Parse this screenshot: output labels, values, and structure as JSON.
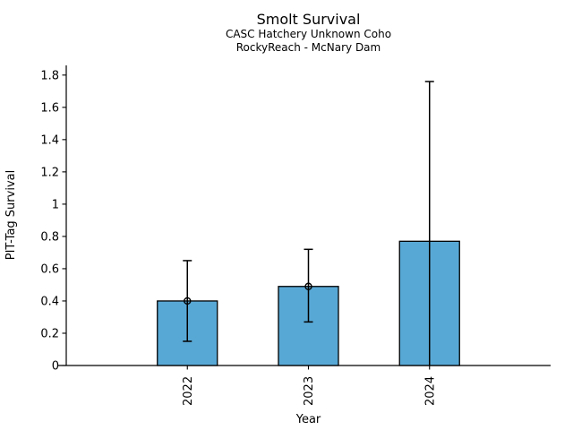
{
  "chart_data": {
    "type": "bar",
    "title": "Smolt Survival",
    "subtitle_lines": [
      "CASC Hatchery Unknown Coho",
      "RockyReach - McNary Dam"
    ],
    "xlabel": "Year",
    "ylabel": "PIT-Tag Survival",
    "categories": [
      "2022",
      "2023",
      "2024"
    ],
    "series": [
      {
        "name": "PIT-Tag Survival",
        "values": [
          0.4,
          0.49,
          0.77
        ],
        "ci_lower": [
          0.15,
          0.27,
          0.0
        ],
        "ci_upper": [
          0.65,
          0.72,
          1.76
        ],
        "point_marker": [
          true,
          true,
          false
        ]
      }
    ],
    "yticks": [
      0,
      0.2,
      0.4,
      0.6,
      0.8,
      1,
      1.2,
      1.4,
      1.6,
      1.8
    ],
    "ytick_labels": [
      "0",
      "0.2",
      "0.4",
      "0.6",
      "0.8",
      "1",
      "1.2",
      "1.4",
      "1.6",
      "1.8"
    ],
    "ylim": [
      0,
      1.86
    ],
    "grid": false,
    "legend": false,
    "bar_color": "#58A8D5",
    "bar_edge_color": "#000000",
    "error_color": "#000000",
    "axis_color": "#000000",
    "background": "#FFFFFF"
  }
}
